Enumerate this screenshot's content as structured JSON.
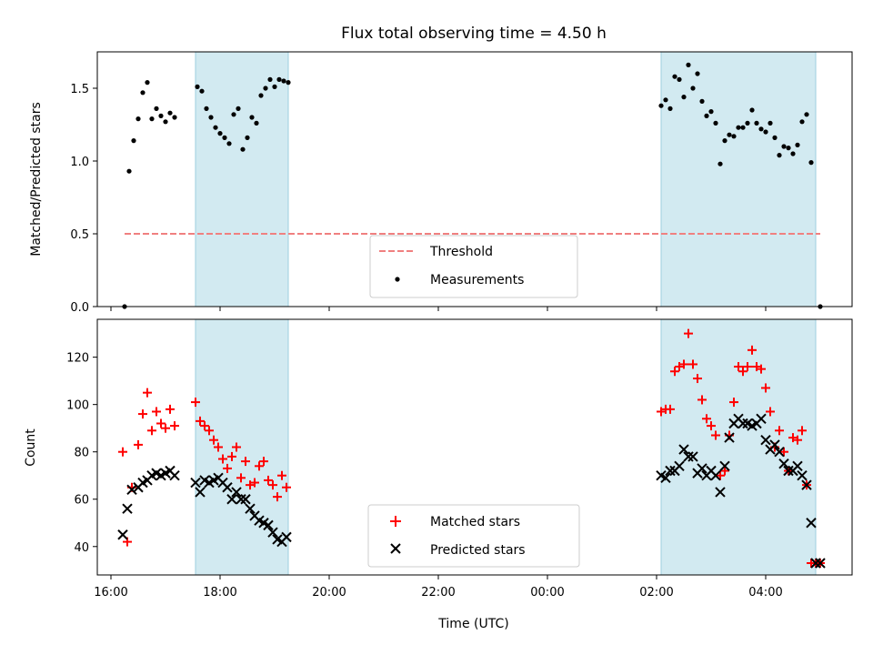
{
  "chart_data": [
    {
      "type": "scatter",
      "title": "Flux total observing time = 4.50 h",
      "xlabel": "",
      "ylabel": "Matched/Predicted stars",
      "xlim": [
        "15:45",
        "05:35"
      ],
      "ylim": [
        0,
        1.75
      ],
      "yticks": [
        "0.0",
        "0.5",
        "1.0",
        "1.5"
      ],
      "grid": false,
      "shaded_intervals": [
        [
          "17:33",
          "19:15"
        ],
        [
          "02:05",
          "04:55"
        ]
      ],
      "shade_color": "#add8e6",
      "legend": {
        "position": "lower-center",
        "entries": [
          "Threshold",
          "Measurements"
        ]
      },
      "series": [
        {
          "name": "Threshold",
          "kind": "dashed-line",
          "color": "#f08080",
          "x": [
            "16:15",
            "05:00"
          ],
          "y": [
            0.5,
            0.5
          ]
        },
        {
          "name": "Measurements",
          "kind": "dot",
          "color": "#000000",
          "x": [
            "16:15",
            "16:20",
            "16:25",
            "16:30",
            "16:35",
            "16:40",
            "16:45",
            "16:50",
            "16:55",
            "17:00",
            "17:05",
            "17:10",
            "17:35",
            "17:40",
            "17:45",
            "17:50",
            "17:55",
            "18:00",
            "18:05",
            "18:10",
            "18:15",
            "18:20",
            "18:25",
            "18:30",
            "18:35",
            "18:40",
            "18:45",
            "18:50",
            "18:55",
            "19:00",
            "19:05",
            "19:10",
            "19:15",
            "02:05",
            "02:10",
            "02:15",
            "02:20",
            "02:25",
            "02:30",
            "02:35",
            "02:40",
            "02:45",
            "02:50",
            "02:55",
            "03:00",
            "03:05",
            "03:10",
            "03:15",
            "03:20",
            "03:25",
            "03:30",
            "03:35",
            "03:40",
            "03:45",
            "03:50",
            "03:55",
            "04:00",
            "04:05",
            "04:10",
            "04:15",
            "04:20",
            "04:25",
            "04:30",
            "04:35",
            "04:40",
            "04:45",
            "04:50",
            "05:00"
          ],
          "y": [
            0.0,
            0.93,
            1.14,
            1.29,
            1.47,
            1.54,
            1.29,
            1.36,
            1.31,
            1.27,
            1.33,
            1.3,
            1.51,
            1.48,
            1.36,
            1.3,
            1.23,
            1.19,
            1.16,
            1.12,
            1.32,
            1.36,
            1.08,
            1.16,
            1.3,
            1.26,
            1.45,
            1.5,
            1.56,
            1.51,
            1.56,
            1.55,
            1.54,
            1.38,
            1.42,
            1.36,
            1.58,
            1.56,
            1.44,
            1.66,
            1.5,
            1.6,
            1.41,
            1.31,
            1.34,
            1.26,
            0.98,
            1.14,
            1.18,
            1.17,
            1.23,
            1.23,
            1.26,
            1.35,
            1.26,
            1.22,
            1.2,
            1.26,
            1.16,
            1.04,
            1.1,
            1.09,
            1.05,
            1.11,
            1.27,
            1.32,
            0.99,
            0.0
          ]
        }
      ]
    },
    {
      "type": "scatter",
      "title": "",
      "xlabel": "Time (UTC)",
      "ylabel": "Count",
      "xlim": [
        "15:45",
        "05:35"
      ],
      "ylim": [
        28,
        136
      ],
      "yticks": [
        "40",
        "60",
        "80",
        "100",
        "120"
      ],
      "xticks": [
        "16:00",
        "18:00",
        "20:00",
        "22:00",
        "00:00",
        "02:00",
        "04:00"
      ],
      "grid": false,
      "shaded_intervals": [
        [
          "17:33",
          "19:15"
        ],
        [
          "02:05",
          "04:55"
        ]
      ],
      "shade_color": "#add8e6",
      "legend": {
        "position": "lower-center",
        "entries": [
          "Matched stars",
          "Predicted stars"
        ]
      },
      "series": [
        {
          "name": "Matched stars",
          "kind": "plus",
          "color": "#ff0000",
          "x": [
            "16:13",
            "16:18",
            "16:23",
            "16:30",
            "16:35",
            "16:40",
            "16:45",
            "16:50",
            "16:55",
            "17:00",
            "17:05",
            "17:10",
            "17:33",
            "17:38",
            "17:43",
            "17:48",
            "17:53",
            "17:58",
            "18:03",
            "18:08",
            "18:13",
            "18:18",
            "18:23",
            "18:28",
            "18:33",
            "18:38",
            "18:43",
            "18:48",
            "18:53",
            "18:58",
            "19:03",
            "19:08",
            "19:13",
            "02:05",
            "02:10",
            "02:15",
            "02:20",
            "02:25",
            "02:30",
            "02:35",
            "02:40",
            "02:45",
            "02:50",
            "02:55",
            "03:00",
            "03:05",
            "03:10",
            "03:15",
            "03:20",
            "03:25",
            "03:30",
            "03:35",
            "03:40",
            "03:45",
            "03:50",
            "03:55",
            "04:00",
            "04:05",
            "04:10",
            "04:15",
            "04:20",
            "04:25",
            "04:30",
            "04:35",
            "04:40",
            "04:45",
            "04:50",
            "04:55",
            "05:00"
          ],
          "y": [
            80,
            42,
            65,
            83,
            96,
            105,
            89,
            97,
            92,
            90,
            98,
            91,
            101,
            93,
            91,
            89,
            85,
            82,
            77,
            73,
            78,
            82,
            69,
            76,
            66,
            67,
            74,
            76,
            68,
            66,
            61,
            70,
            65,
            97,
            98,
            98,
            114,
            116,
            117,
            130,
            117,
            111,
            102,
            94,
            91,
            87,
            70,
            72,
            87,
            101,
            116,
            114,
            116,
            123,
            116,
            115,
            107,
            97,
            82,
            89,
            80,
            72,
            86,
            85,
            89,
            66,
            33,
            33,
            33
          ]
        },
        {
          "name": "Predicted stars",
          "kind": "cross",
          "color": "#000000",
          "x": [
            "16:13",
            "16:18",
            "16:23",
            "16:30",
            "16:35",
            "16:40",
            "16:45",
            "16:50",
            "16:55",
            "17:00",
            "17:05",
            "17:10",
            "17:33",
            "17:38",
            "17:43",
            "17:48",
            "17:53",
            "17:58",
            "18:03",
            "18:08",
            "18:13",
            "18:18",
            "18:23",
            "18:28",
            "18:33",
            "18:38",
            "18:43",
            "18:48",
            "18:53",
            "18:58",
            "19:03",
            "19:08",
            "19:13",
            "02:05",
            "02:10",
            "02:15",
            "02:20",
            "02:25",
            "02:30",
            "02:35",
            "02:40",
            "02:45",
            "02:50",
            "02:55",
            "03:00",
            "03:05",
            "03:10",
            "03:15",
            "03:20",
            "03:25",
            "03:30",
            "03:35",
            "03:40",
            "03:45",
            "03:50",
            "03:55",
            "04:00",
            "04:05",
            "04:10",
            "04:15",
            "04:20",
            "04:25",
            "04:30",
            "04:35",
            "04:40",
            "04:45",
            "04:50",
            "04:55",
            "05:00"
          ],
          "y": [
            45,
            56,
            64,
            65,
            67,
            68,
            70,
            71,
            70,
            71,
            72,
            70,
            67,
            63,
            68,
            67,
            68,
            69,
            67,
            65,
            60,
            63,
            60,
            60,
            56,
            53,
            51,
            50,
            49,
            46,
            43,
            42,
            44,
            70,
            69,
            72,
            72,
            74,
            81,
            78,
            78,
            71,
            73,
            70,
            72,
            70,
            63,
            74,
            86,
            92,
            94,
            92,
            92,
            91,
            92,
            94,
            85,
            81,
            83,
            80,
            75,
            72,
            72,
            74,
            70,
            66,
            50,
            33,
            33
          ]
        }
      ]
    }
  ]
}
